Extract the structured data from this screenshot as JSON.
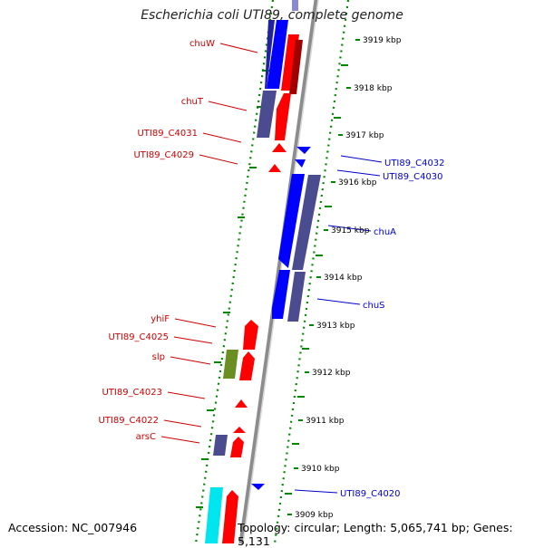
{
  "title": "Escherichia coli UTI89, complete genome",
  "accession": "Accession: NC_007946",
  "topology": "Topology: circular; Length: 5,065,741 bp; Genes: 5,131",
  "colors": {
    "forward_gene": "#ff0000",
    "reverse_gene": "#0000ff",
    "forward_label": "#cc0000",
    "reverse_label": "#0000cc",
    "shaded_gene": "#4b4b8f",
    "rna_gene": "#6b8e23",
    "other_gene": "#00e5ee",
    "axis_dots": "#008800",
    "backbone": "#999999"
  },
  "scale_ticks": [
    {
      "label": "3919 kbp"
    },
    {
      "label": "3918 kbp"
    },
    {
      "label": "3917 kbp"
    },
    {
      "label": "3916 kbp"
    },
    {
      "label": "3915 kbp"
    },
    {
      "label": "3914 kbp"
    },
    {
      "label": "3913 kbp"
    },
    {
      "label": "3912 kbp"
    },
    {
      "label": "3911 kbp"
    },
    {
      "label": "3910 kbp"
    },
    {
      "label": "3909 kbp"
    }
  ],
  "left_labels": [
    {
      "text": "chuW"
    },
    {
      "text": "chuT"
    },
    {
      "text": "UTI89_C4031"
    },
    {
      "text": "UTI89_C4029"
    },
    {
      "text": "yhiF"
    },
    {
      "text": "UTI89_C4025"
    },
    {
      "text": "slp"
    },
    {
      "text": "UTI89_C4023"
    },
    {
      "text": "UTI89_C4022"
    },
    {
      "text": "arsC"
    }
  ],
  "right_labels": [
    {
      "text": "UTI89_C4032"
    },
    {
      "text": "UTI89_C4030"
    },
    {
      "text": "chuA"
    },
    {
      "text": "chuS"
    },
    {
      "text": "UTI89_C4020"
    }
  ]
}
